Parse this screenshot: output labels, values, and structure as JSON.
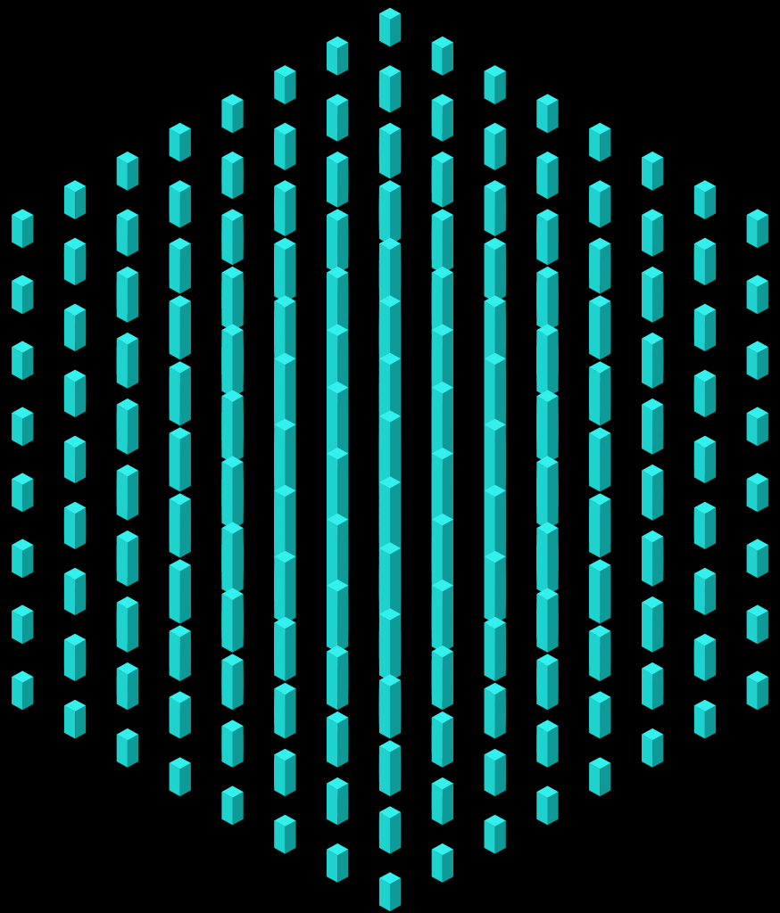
{
  "scene": {
    "background_color": "#000000",
    "cube_colors": {
      "top": "#33f0ec",
      "left": "#1fd2ce",
      "right": "#0f9a97"
    },
    "fractal": {
      "kind": "3d-cube-fractal",
      "iterations": 3,
      "offsets": [
        [
          -1,
          -1,
          -1
        ],
        [
          1,
          -1,
          -1
        ],
        [
          -1,
          1,
          -1
        ],
        [
          1,
          1,
          -1
        ],
        [
          -1,
          -1,
          1
        ],
        [
          1,
          -1,
          1
        ],
        [
          -1,
          1,
          1
        ],
        [
          1,
          1,
          1
        ],
        [
          0,
          0,
          0
        ]
      ]
    }
  }
}
